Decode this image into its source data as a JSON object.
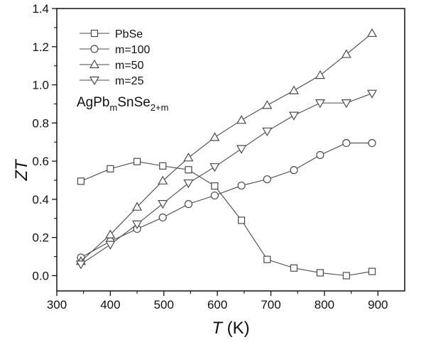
{
  "chart_data": {
    "type": "line",
    "xlabel": {
      "italic": "T",
      "rest": " (K)"
    },
    "ylabel": "ZT",
    "xlim": [
      300,
      950
    ],
    "ylim": [
      -0.08,
      1.4
    ],
    "xticks": [
      300,
      400,
      500,
      600,
      700,
      800,
      900
    ],
    "yticks": [
      0.0,
      0.2,
      0.4,
      0.6,
      0.8,
      1.0,
      1.2,
      1.4
    ],
    "ytick_labels": [
      "0.0",
      "0.2",
      "0.4",
      "0.6",
      "0.8",
      "1.0",
      "1.2",
      "1.4"
    ],
    "grid": false,
    "legend_position": "top-left",
    "series_color": "#4a4a4a",
    "annotation": {
      "base1": "AgPb",
      "sub1": "m",
      "base2": "SnSe",
      "sub2": "2+m"
    },
    "series": [
      {
        "name": "PbSe",
        "marker": "square",
        "x": [
          345,
          400,
          450,
          498,
          546,
          595,
          645,
          693,
          743,
          792,
          841,
          889
        ],
        "y": [
          0.495,
          0.56,
          0.598,
          0.575,
          0.555,
          0.47,
          0.29,
          0.085,
          0.04,
          0.015,
          0.0,
          0.022
        ]
      },
      {
        "name": "m=100",
        "marker": "circle",
        "x": [
          345,
          400,
          450,
          498,
          546,
          595,
          645,
          693,
          743,
          792,
          841,
          889
        ],
        "y": [
          0.095,
          0.18,
          0.245,
          0.305,
          0.375,
          0.42,
          0.472,
          0.505,
          0.553,
          0.632,
          0.695,
          0.695
        ]
      },
      {
        "name": "m=50",
        "marker": "triangle-up",
        "x": [
          345,
          400,
          450,
          498,
          546,
          595,
          645,
          693,
          743,
          792,
          841,
          889
        ],
        "y": [
          0.075,
          0.215,
          0.36,
          0.497,
          0.618,
          0.725,
          0.815,
          0.893,
          0.97,
          1.05,
          1.16,
          1.27
        ]
      },
      {
        "name": "m=25",
        "marker": "triangle-down",
        "x": [
          345,
          400,
          450,
          498,
          546,
          595,
          645,
          693,
          743,
          792,
          841,
          889
        ],
        "y": [
          0.06,
          0.163,
          0.27,
          0.377,
          0.485,
          0.57,
          0.665,
          0.757,
          0.84,
          0.905,
          0.905,
          0.955
        ]
      }
    ]
  }
}
